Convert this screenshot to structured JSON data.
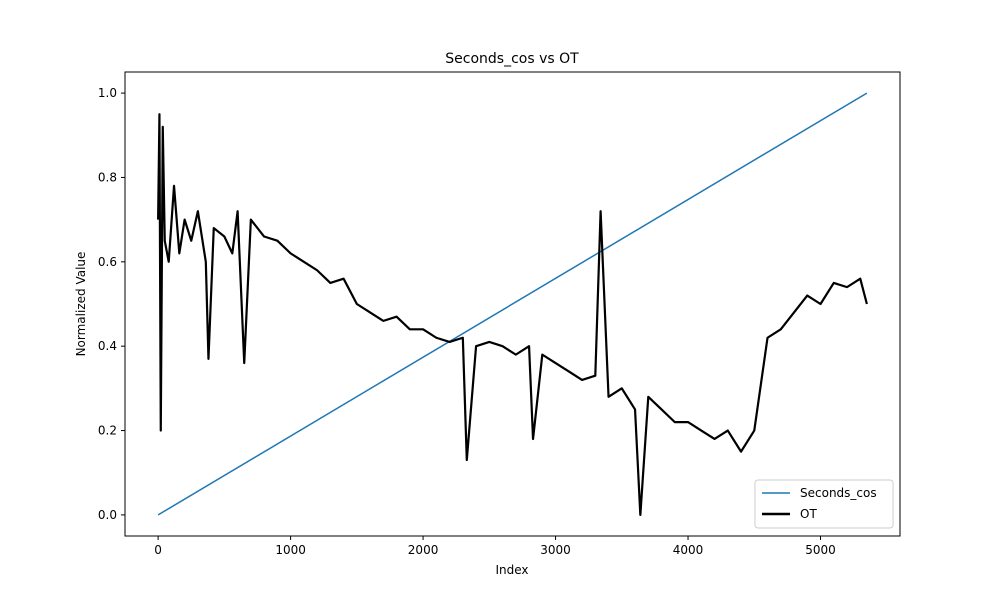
{
  "chart_data": {
    "type": "line",
    "title": "Seconds_cos vs OT",
    "xlabel": "Index",
    "ylabel": "Normalized Value",
    "xlim": [
      -250,
      5600
    ],
    "ylim": [
      -0.05,
      1.05
    ],
    "x_ticks": [
      0,
      1000,
      2000,
      3000,
      4000,
      5000
    ],
    "y_ticks": [
      0.0,
      0.2,
      0.4,
      0.6,
      0.8,
      1.0
    ],
    "x_tick_labels": [
      "0",
      "1000",
      "2000",
      "3000",
      "4000",
      "5000"
    ],
    "y_tick_labels": [
      "0.0",
      "0.2",
      "0.4",
      "0.6",
      "0.8",
      "1.0"
    ],
    "grid": false,
    "legend_position": "lower-right",
    "series": [
      {
        "name": "Seconds_cos",
        "color": "#1f77b4",
        "x": [
          0,
          5350
        ],
        "values": [
          0.0,
          1.0
        ]
      },
      {
        "name": "OT",
        "color": "#000000",
        "x": [
          0,
          10,
          20,
          35,
          50,
          80,
          120,
          160,
          200,
          250,
          300,
          360,
          380,
          420,
          500,
          560,
          600,
          650,
          700,
          800,
          900,
          1000,
          1100,
          1200,
          1300,
          1400,
          1500,
          1600,
          1700,
          1800,
          1900,
          2000,
          2100,
          2200,
          2300,
          2330,
          2400,
          2500,
          2600,
          2700,
          2800,
          2830,
          2900,
          3000,
          3100,
          3200,
          3300,
          3340,
          3400,
          3500,
          3600,
          3640,
          3700,
          3800,
          3900,
          4000,
          4100,
          4200,
          4300,
          4400,
          4500,
          4600,
          4700,
          4800,
          4900,
          5000,
          5100,
          5200,
          5300,
          5350
        ],
        "values": [
          0.7,
          0.95,
          0.2,
          0.92,
          0.65,
          0.6,
          0.78,
          0.62,
          0.7,
          0.65,
          0.72,
          0.6,
          0.37,
          0.68,
          0.66,
          0.62,
          0.72,
          0.36,
          0.7,
          0.66,
          0.65,
          0.62,
          0.6,
          0.58,
          0.55,
          0.56,
          0.5,
          0.48,
          0.46,
          0.47,
          0.44,
          0.44,
          0.42,
          0.41,
          0.42,
          0.13,
          0.4,
          0.41,
          0.4,
          0.38,
          0.4,
          0.18,
          0.38,
          0.36,
          0.34,
          0.32,
          0.33,
          0.72,
          0.28,
          0.3,
          0.25,
          0.0,
          0.28,
          0.25,
          0.22,
          0.22,
          0.2,
          0.18,
          0.2,
          0.15,
          0.2,
          0.42,
          0.44,
          0.48,
          0.52,
          0.5,
          0.55,
          0.54,
          0.56,
          0.5
        ]
      }
    ]
  }
}
